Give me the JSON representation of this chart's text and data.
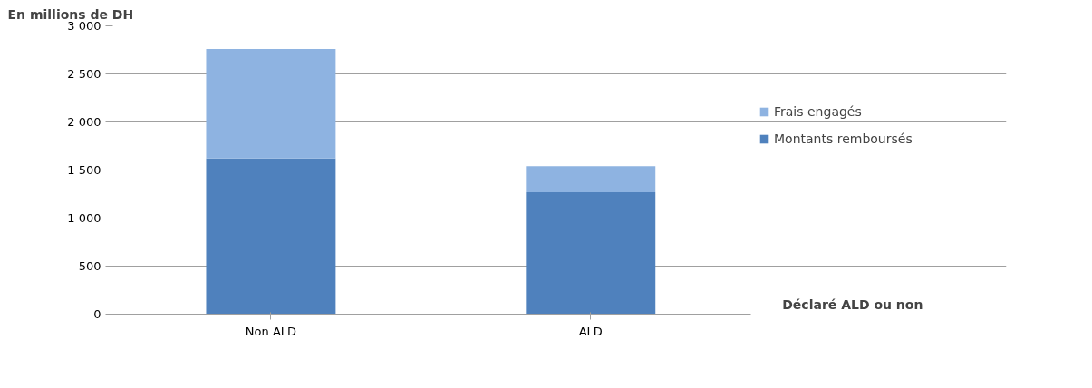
{
  "chart_data": {
    "type": "bar",
    "stacked": true,
    "ylabel": "En millions de DH",
    "xlabel": "Déclaré ALD ou non",
    "categories": [
      "Non ALD",
      "ALD"
    ],
    "series": [
      {
        "name": "Montants remboursés",
        "color": "#4f81bd",
        "values": [
          1620,
          1270
        ]
      },
      {
        "name": "Frais engagés",
        "color": "#8eb3e1",
        "values": [
          1140,
          270
        ]
      }
    ],
    "ylim": [
      0,
      3000
    ],
    "yticks": [
      0,
      500,
      {
        "value": 1000,
        "label": "1 000"
      },
      {
        "value": 1500,
        "label": "1 500"
      },
      {
        "value": 2000,
        "label": "2 000"
      },
      {
        "value": 2500,
        "label": "2 500"
      },
      {
        "value": 3000,
        "label": "3 000"
      }
    ],
    "grid": "y",
    "legend": "right"
  }
}
